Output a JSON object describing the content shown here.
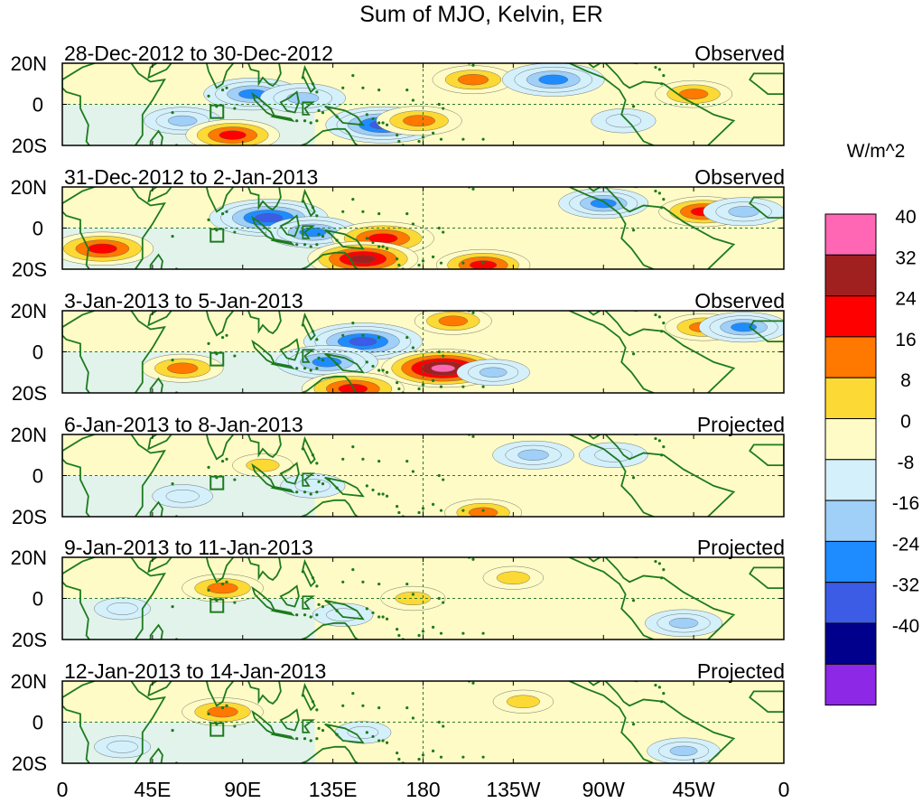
{
  "chart_data": {
    "type": "heatmap",
    "title": "Sum of MJO, Kelvin, ER",
    "units": "W/m^2",
    "x_ticks": [
      "0",
      "45E",
      "90E",
      "135E",
      "180",
      "135W",
      "90W",
      "45W",
      "0"
    ],
    "y_ticks": [
      "20N",
      "0",
      "20S"
    ],
    "xlim": [
      0,
      360
    ],
    "ylim": [
      -20,
      20
    ],
    "colorbar": {
      "labels": [
        "40",
        "32",
        "24",
        "16",
        "8",
        "0",
        "-8",
        "-16",
        "-24",
        "-32",
        "-40"
      ],
      "colors": [
        "#ff66b3",
        "#a02020",
        "#ff0000",
        "#ff7800",
        "#fcd935",
        "#fefbc6",
        "#d4f0fb",
        "#a0cff8",
        "#1e8cff",
        "#3c5ce6",
        "#00008c",
        "#8c28e6"
      ]
    },
    "panels": [
      {
        "date_range": "28-Dec-2012 to 30-Dec-2012",
        "status": "Observed",
        "features": [
          {
            "lon": 95,
            "lat": 5,
            "value": -28
          },
          {
            "lon": 120,
            "lat": 3,
            "value": -22
          },
          {
            "lon": 160,
            "lat": -10,
            "value": -36
          },
          {
            "lon": 60,
            "lat": -8,
            "value": -18
          },
          {
            "lon": 85,
            "lat": -15,
            "value": 26
          },
          {
            "lon": 178,
            "lat": -8,
            "value": 22
          },
          {
            "lon": 205,
            "lat": 12,
            "value": 20
          },
          {
            "lon": 245,
            "lat": 12,
            "value": -30
          },
          {
            "lon": 315,
            "lat": 5,
            "value": 18
          },
          {
            "lon": 280,
            "lat": -8,
            "value": -12
          }
        ]
      },
      {
        "date_range": "31-Dec-2012 to 2-Jan-2013",
        "status": "Observed",
        "features": [
          {
            "lon": 103,
            "lat": 5,
            "value": -38
          },
          {
            "lon": 125,
            "lat": -2,
            "value": -26
          },
          {
            "lon": 160,
            "lat": -5,
            "value": 30
          },
          {
            "lon": 150,
            "lat": -15,
            "value": 34
          },
          {
            "lon": 20,
            "lat": -10,
            "value": 30
          },
          {
            "lon": 270,
            "lat": 12,
            "value": -24
          },
          {
            "lon": 320,
            "lat": 8,
            "value": 24
          },
          {
            "lon": 210,
            "lat": -18,
            "value": 26
          },
          {
            "lon": 340,
            "lat": 8,
            "value": -20
          }
        ]
      },
      {
        "date_range": "3-Jan-2013 to 5-Jan-2013",
        "status": "Observed",
        "features": [
          {
            "lon": 150,
            "lat": 5,
            "value": -38
          },
          {
            "lon": 132,
            "lat": -5,
            "value": -30
          },
          {
            "lon": 190,
            "lat": -8,
            "value": 40
          },
          {
            "lon": 145,
            "lat": -18,
            "value": 30
          },
          {
            "lon": 60,
            "lat": -8,
            "value": 20
          },
          {
            "lon": 320,
            "lat": 12,
            "value": 18
          },
          {
            "lon": 340,
            "lat": 12,
            "value": -24
          },
          {
            "lon": 195,
            "lat": 15,
            "value": 18
          },
          {
            "lon": 215,
            "lat": -10,
            "value": -16
          }
        ]
      },
      {
        "date_range": "6-Jan-2013 to 8-Jan-2013",
        "status": "Projected",
        "features": [
          {
            "lon": 235,
            "lat": 10,
            "value": -20
          },
          {
            "lon": 275,
            "lat": 10,
            "value": -14
          },
          {
            "lon": 100,
            "lat": 5,
            "value": 10
          },
          {
            "lon": 210,
            "lat": -18,
            "value": 18
          },
          {
            "lon": 60,
            "lat": -10,
            "value": -10
          },
          {
            "lon": 125,
            "lat": -5,
            "value": -12
          }
        ]
      },
      {
        "date_range": "9-Jan-2013 to 11-Jan-2013",
        "status": "Projected",
        "features": [
          {
            "lon": 80,
            "lat": 5,
            "value": 20
          },
          {
            "lon": 175,
            "lat": 0,
            "value": 12
          },
          {
            "lon": 225,
            "lat": 10,
            "value": 10
          },
          {
            "lon": 310,
            "lat": -12,
            "value": -18
          },
          {
            "lon": 140,
            "lat": -8,
            "value": -10
          },
          {
            "lon": 30,
            "lat": -5,
            "value": -8
          }
        ]
      },
      {
        "date_range": "12-Jan-2013 to 14-Jan-2013",
        "status": "Projected",
        "features": [
          {
            "lon": 80,
            "lat": 5,
            "value": 20
          },
          {
            "lon": 230,
            "lat": 10,
            "value": 10
          },
          {
            "lon": 310,
            "lat": -14,
            "value": -16
          },
          {
            "lon": 150,
            "lat": -5,
            "value": -8
          },
          {
            "lon": 30,
            "lat": -12,
            "value": -8
          }
        ]
      }
    ]
  }
}
